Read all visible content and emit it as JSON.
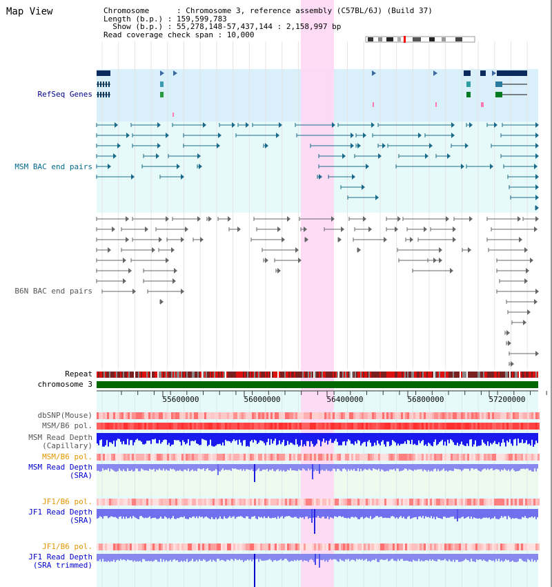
{
  "header": {
    "title": "Map View",
    "line1": "Chromosome      : Chromosome 3, reference assembly (C57BL/6J) (Build 37)",
    "line2": "Length (b.p.) : 159,599,783",
    "line3": "  Show (b.p.) : 55,278,148-57,437,144 : 2,158,997 bp",
    "line4": "Read coverage check span : 10,000"
  },
  "tracks": {
    "refseq": "RefSeq Genes",
    "msm_bac": "MSM BAC end pairs",
    "b6n_bac": "B6N BAC end pairs",
    "repeat": "Repeat",
    "chromosome": "chromosome 3",
    "dbsnp": "dbSNP(Mouse)",
    "msm_pol1": "MSM/B6 pol.",
    "msm_depth_cap_1": "MSM Read Depth",
    "msm_depth_cap_2": "(Capillary)",
    "msm_pol2": "MSM/B6 pol.",
    "msm_depth_sra_1": "MSM Read Depth",
    "msm_depth_sra_2": "(SRA)",
    "jf1_pol1": "JF1/B6 pol.",
    "jf1_depth_sra_1": "JF1 Read Depth",
    "jf1_depth_sra_2": "(SRA)",
    "jf1_pol2": "JF1/B6 pol.",
    "jf1_depth_trim_1": "JF1 Read Depth",
    "jf1_depth_trim_2": "(SRA trimmed)"
  },
  "axis": {
    "ticks": [
      "55600000",
      "56000000",
      "56400000",
      "56800000",
      "57200000"
    ]
  },
  "colors": {
    "refseq_label": "#00008b",
    "msm_bac_label": "#006a8a",
    "b6n_bac_label": "#555555",
    "pol_orange": "#e69500",
    "depth_blue": "#0000cc",
    "highlight": "#ffd6f3"
  }
}
